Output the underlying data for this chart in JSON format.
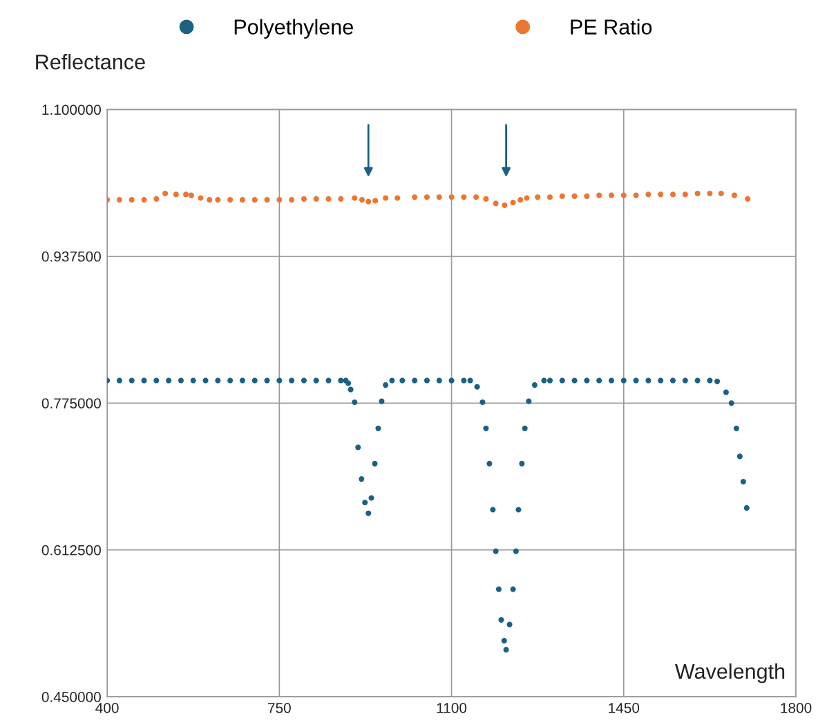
{
  "chart_data": {
    "type": "scatter",
    "ylabel": "Reflectance",
    "xlabel": "Wavelength",
    "xlim": [
      400,
      1800
    ],
    "xticks": [
      400,
      750,
      1100,
      1450,
      1800
    ],
    "ylim": [
      0.45,
      1.1
    ],
    "yticks": [
      {
        "value": 0.45,
        "label": "0.450000"
      },
      {
        "value": 0.6125,
        "label": "0.612500"
      },
      {
        "value": 0.775,
        "label": "0.775000"
      },
      {
        "value": 0.9375,
        "label": "0.937500"
      },
      {
        "value": 1.1,
        "label": "1.100000"
      }
    ],
    "grid": true,
    "legend": "top",
    "marker": "circle",
    "series": [
      {
        "name": "Polyethylene",
        "color": "#1a6183",
        "x": [
          400,
          425,
          450,
          475,
          500,
          525,
          550,
          575,
          600,
          625,
          650,
          675,
          700,
          725,
          750,
          775,
          800,
          825,
          850,
          875,
          885,
          890,
          895,
          903,
          910,
          917,
          924,
          931,
          937,
          944,
          951,
          958,
          966,
          979,
          1000,
          1025,
          1050,
          1075,
          1100,
          1125,
          1138,
          1152,
          1163,
          1170,
          1177,
          1184,
          1190,
          1196,
          1201,
          1207,
          1211,
          1218,
          1225,
          1231,
          1236,
          1243,
          1249,
          1257,
          1269,
          1288,
          1300,
          1325,
          1350,
          1375,
          1400,
          1425,
          1450,
          1475,
          1500,
          1525,
          1550,
          1575,
          1600,
          1625,
          1640,
          1658,
          1669,
          1679,
          1686,
          1693,
          1700
        ],
        "values": [
          0.8,
          0.8,
          0.8,
          0.8,
          0.8,
          0.8,
          0.8,
          0.8,
          0.8,
          0.8,
          0.8,
          0.8,
          0.8,
          0.8,
          0.8,
          0.8,
          0.8,
          0.8,
          0.8,
          0.8,
          0.8,
          0.797,
          0.79,
          0.776,
          0.726,
          0.691,
          0.665,
          0.653,
          0.67,
          0.708,
          0.747,
          0.777,
          0.795,
          0.8,
          0.8,
          0.8,
          0.8,
          0.8,
          0.8,
          0.8,
          0.8,
          0.793,
          0.776,
          0.747,
          0.708,
          0.657,
          0.611,
          0.569,
          0.535,
          0.512,
          0.502,
          0.53,
          0.569,
          0.611,
          0.657,
          0.708,
          0.747,
          0.777,
          0.795,
          0.8,
          0.8,
          0.8,
          0.8,
          0.8,
          0.8,
          0.8,
          0.8,
          0.8,
          0.8,
          0.8,
          0.8,
          0.8,
          0.8,
          0.8,
          0.799,
          0.787,
          0.775,
          0.747,
          0.716,
          0.688,
          0.659
        ]
      },
      {
        "name": "PE Ratio",
        "color": "#ec7532",
        "x": [
          400,
          425,
          450,
          475,
          500,
          518,
          540,
          560,
          571,
          590,
          608,
          625,
          650,
          675,
          700,
          725,
          750,
          775,
          800,
          825,
          850,
          875,
          903,
          918,
          931,
          945,
          966,
          990,
          1025,
          1050,
          1075,
          1100,
          1125,
          1150,
          1170,
          1190,
          1208,
          1225,
          1240,
          1253,
          1275,
          1300,
          1325,
          1350,
          1375,
          1400,
          1425,
          1450,
          1475,
          1500,
          1525,
          1550,
          1575,
          1600,
          1625,
          1648,
          1675,
          1702
        ],
        "values": [
          1.0,
          1.0,
          1.0,
          1.0,
          1.001,
          1.007,
          1.006,
          1.006,
          1.005,
          1.002,
          1.0,
          1.0,
          1.0,
          1.0,
          1.0,
          1.0,
          1.0,
          1.0,
          1.001,
          1.001,
          1.001,
          1.001,
          1.002,
          1.0,
          0.998,
          0.999,
          1.002,
          1.002,
          1.003,
          1.003,
          1.003,
          1.003,
          1.003,
          1.003,
          1.001,
          0.996,
          0.994,
          0.997,
          1.0,
          1.002,
          1.003,
          1.003,
          1.004,
          1.004,
          1.004,
          1.005,
          1.005,
          1.005,
          1.005,
          1.006,
          1.006,
          1.006,
          1.006,
          1.007,
          1.007,
          1.007,
          1.005,
          1.001
        ]
      }
    ]
  }
}
